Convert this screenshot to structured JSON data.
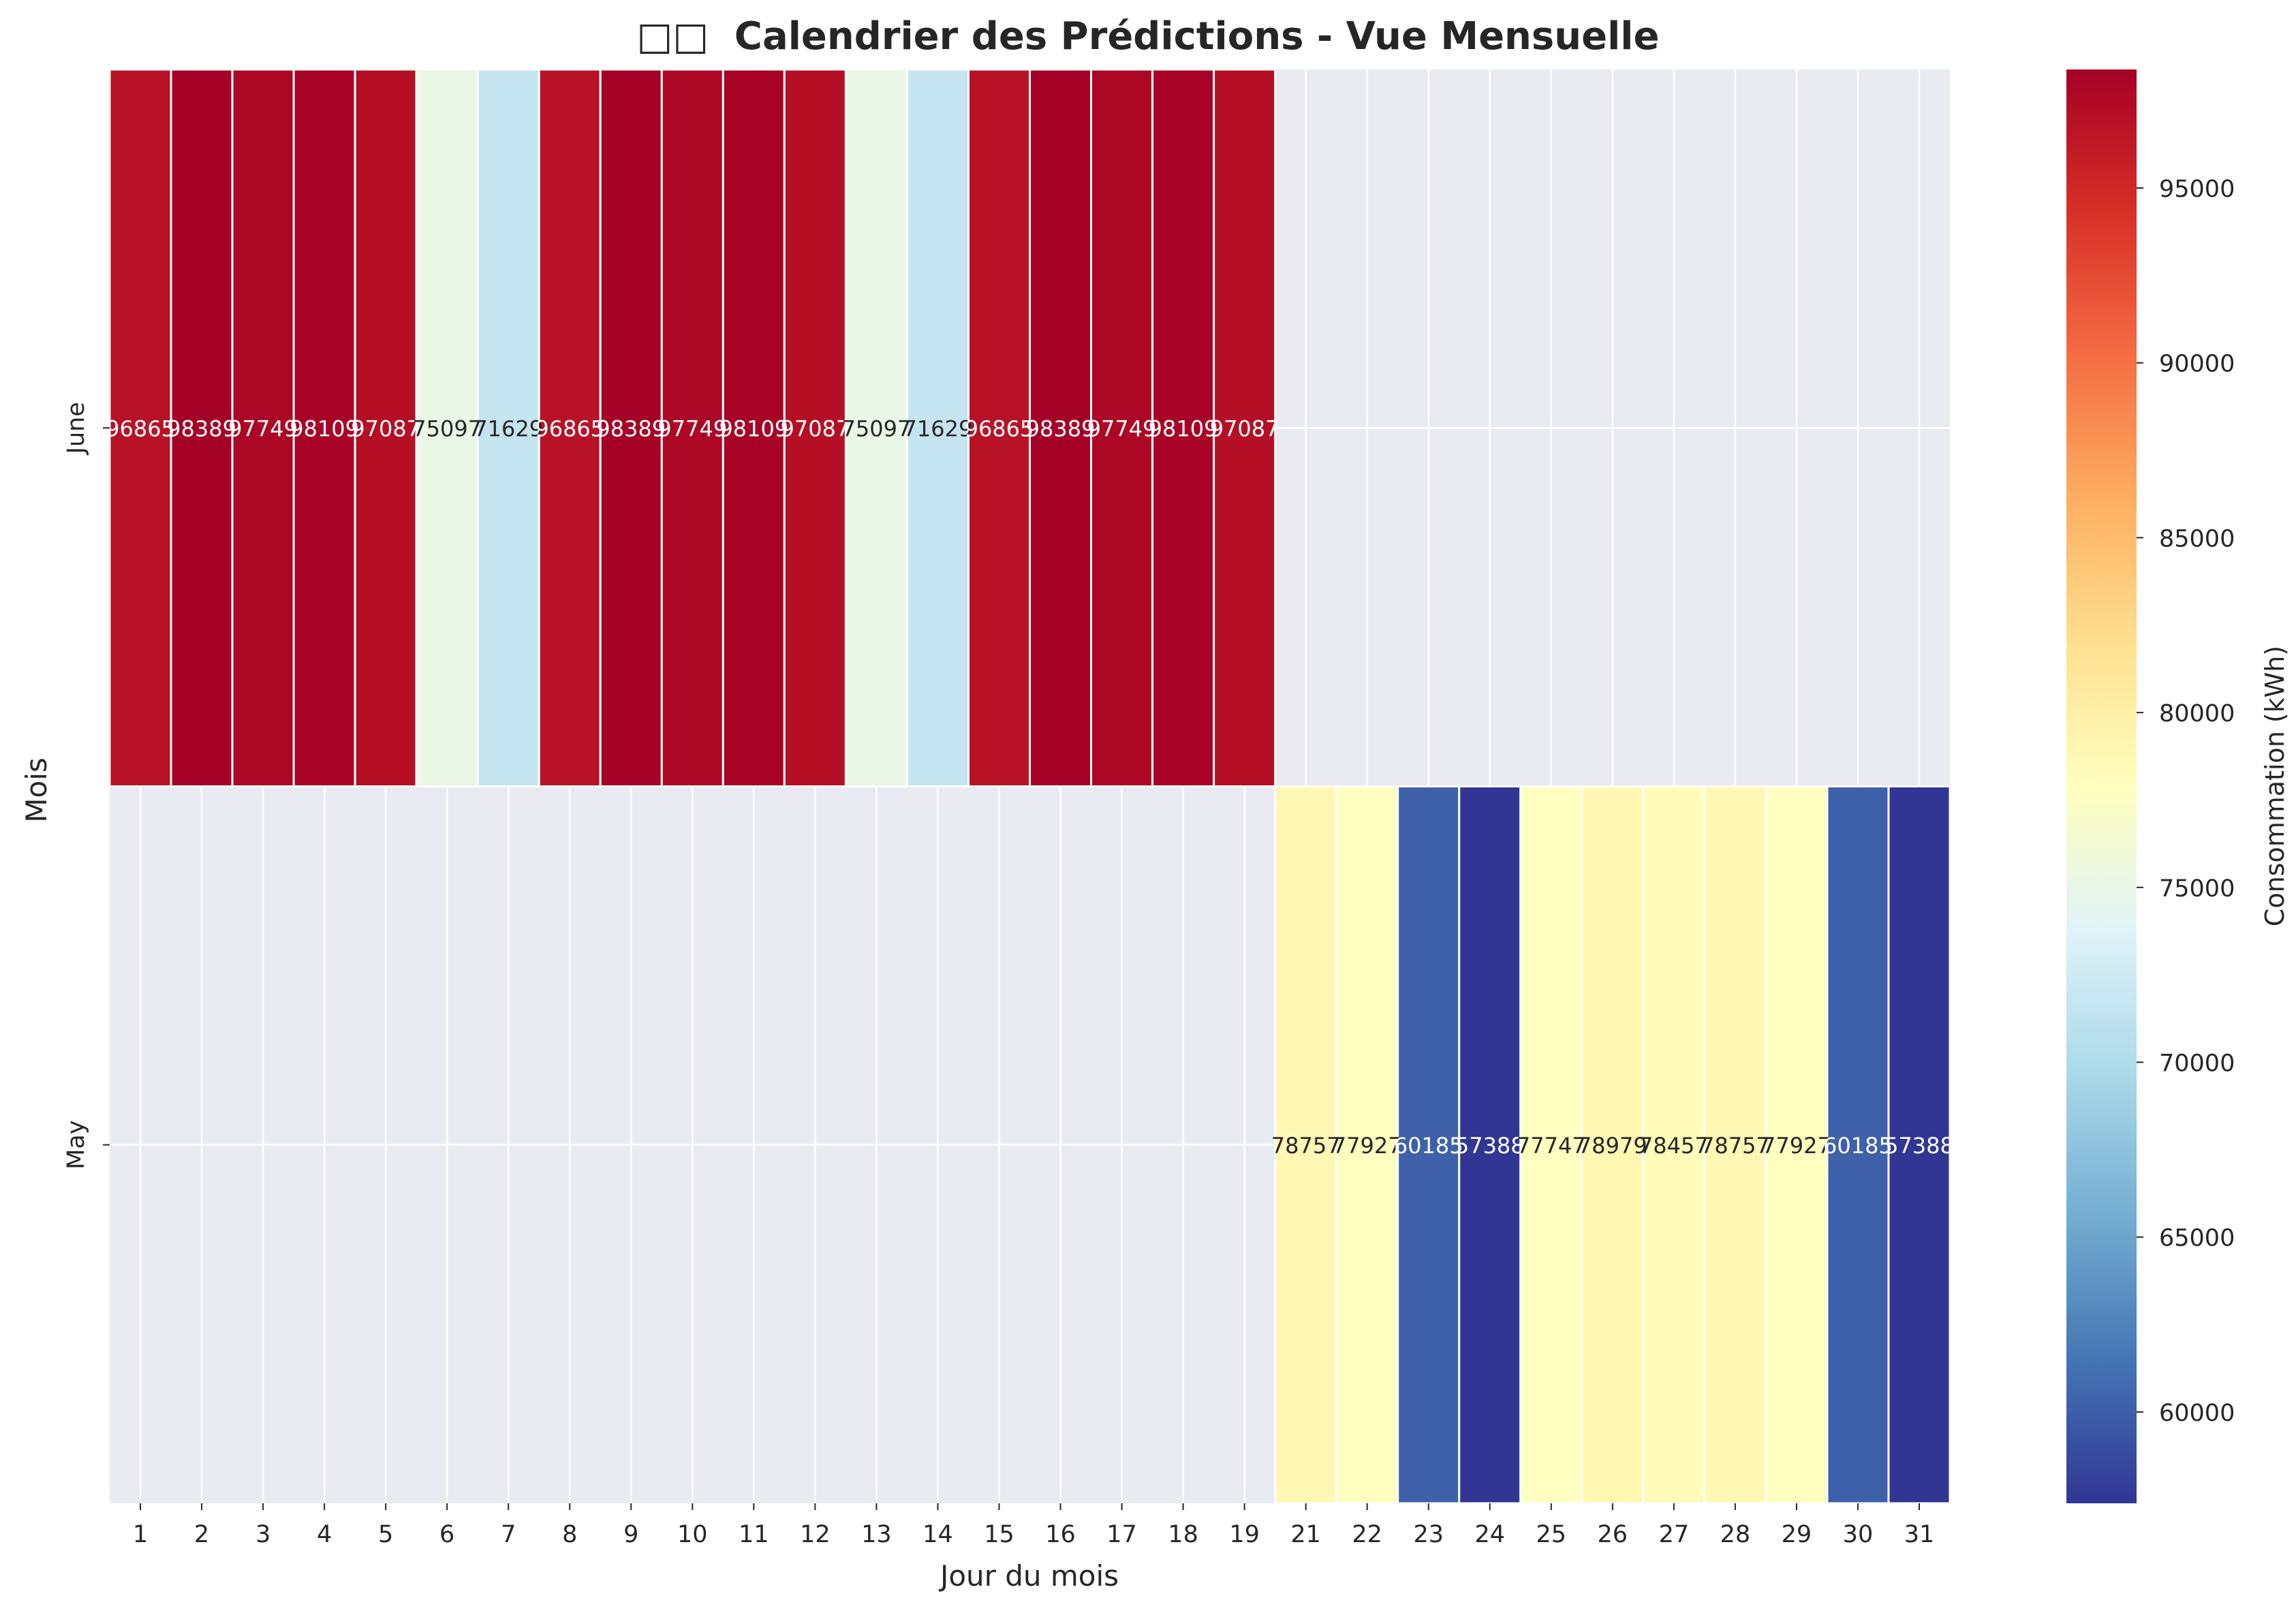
{
  "chart_data": {
    "type": "heatmap",
    "title_glyphs": "□□",
    "title": "Calendrier des Prédictions - Vue Mensuelle",
    "xlabel": "Jour du mois",
    "ylabel": "Mois",
    "x_ticks": [
      "1",
      "2",
      "3",
      "4",
      "5",
      "6",
      "7",
      "8",
      "9",
      "10",
      "11",
      "12",
      "13",
      "14",
      "15",
      "16",
      "17",
      "18",
      "19",
      "21",
      "22",
      "23",
      "24",
      "25",
      "26",
      "27",
      "28",
      "29",
      "30",
      "31"
    ],
    "y_ticks": [
      "June",
      "May"
    ],
    "rows": [
      {
        "month": "June",
        "values": [
          96865,
          98389,
          97749,
          98109,
          97087,
          75097,
          71629,
          96865,
          98389,
          97749,
          98109,
          97087,
          75097,
          71629,
          96865,
          98389,
          97749,
          98109,
          97087,
          null,
          null,
          null,
          null,
          null,
          null,
          null,
          null,
          null,
          null,
          null
        ],
        "labels": [
          "96865",
          "98389",
          "97749",
          "98109",
          "97087",
          "75097",
          "71629",
          "96865",
          "98389",
          "97749",
          "98109",
          "97087",
          "75097",
          "71629",
          "96865",
          "98389",
          "97749",
          "98109",
          "97087",
          "",
          "",
          "",
          "",
          "",
          "",
          "",
          "",
          "",
          "",
          ""
        ]
      },
      {
        "month": "May",
        "values": [
          null,
          null,
          null,
          null,
          null,
          null,
          null,
          null,
          null,
          null,
          null,
          null,
          null,
          null,
          null,
          null,
          null,
          null,
          null,
          78757,
          77927,
          60185,
          57388,
          77747,
          78979,
          78457,
          78757,
          77927,
          60185,
          57388
        ],
        "labels": [
          "",
          "",
          "",
          "",
          "",
          "",
          "",
          "",
          "",
          "",
          "",
          "",
          "",
          "",
          "",
          "",
          "",
          "",
          "",
          "78757",
          "77927",
          "60185",
          "57388",
          "77747",
          "78979",
          "78457",
          "78757",
          "77927",
          "60185",
          "57388"
        ]
      }
    ],
    "colorbar": {
      "label": "Consommation (kWh)",
      "vmin": 57388,
      "vmax": 98389,
      "ticks": [
        "60000",
        "65000",
        "70000",
        "75000",
        "80000",
        "85000",
        "90000",
        "95000"
      ],
      "colormap": "RdYlBu_r"
    },
    "missing_color": "#eaeaf2",
    "grid": true
  }
}
